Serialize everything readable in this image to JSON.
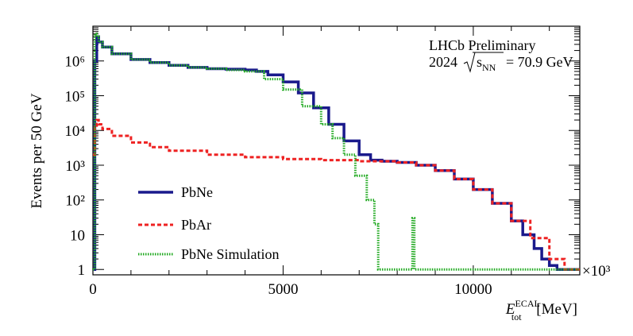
{
  "chart_data": {
    "type": "line",
    "xlabel": {
      "symbol": "E",
      "sup": "ECAL",
      "sub": "tot",
      "unit": "[MeV]"
    },
    "ylabel": "Events per 50 GeV",
    "x_multiplier": "×10³",
    "xlim": [
      0,
      12800
    ],
    "ylim": [
      0.7,
      10000000
    ],
    "yscale": "log",
    "x_ticks": [
      {
        "value": 0,
        "label": "0"
      },
      {
        "value": 5000,
        "label": "5000"
      },
      {
        "value": 10000,
        "label": "10000"
      }
    ],
    "y_ticks": [
      {
        "value": 1,
        "label": "1"
      },
      {
        "value": 10,
        "label": "10"
      },
      {
        "value": 100,
        "label": "10²"
      },
      {
        "value": 1000,
        "label": "10³"
      },
      {
        "value": 10000,
        "label": "10⁴"
      },
      {
        "value": 100000,
        "label": "10⁵"
      },
      {
        "value": 1000000,
        "label": "10⁶"
      }
    ],
    "annotations": {
      "line1": "LHCb Preliminary",
      "year": "2024",
      "sqrt_label": "s",
      "sqrt_sub": "NN",
      "energy": "= 70.9 GeV"
    },
    "legend_position": "bottom-left",
    "series": [
      {
        "name": "PbNe",
        "color": "#1a1a8c",
        "style": "solid",
        "x": [
          0,
          50,
          100,
          150,
          250,
          500,
          1000,
          1500,
          2000,
          2500,
          3000,
          3500,
          4000,
          4300,
          4600,
          5000,
          5400,
          5800,
          6200,
          6600,
          7000,
          7300,
          7600,
          8000,
          8500,
          9000,
          9500,
          10000,
          10500,
          11000,
          11300,
          11600,
          11800,
          12000,
          12200,
          12400,
          12600
        ],
        "values": [
          1,
          1000000,
          5000000,
          3500000,
          2500000,
          1600000,
          1100000,
          900000,
          750000,
          650000,
          600000,
          580000,
          550000,
          500000,
          400000,
          250000,
          120000,
          45000,
          15000,
          5000,
          2000,
          1400,
          1300,
          1200,
          1000,
          700,
          400,
          200,
          80,
          25,
          10,
          4,
          2,
          1.3,
          1,
          1,
          1
        ]
      },
      {
        "name": "PbAr",
        "color": "#ee2222",
        "style": "dashed",
        "x": [
          0,
          50,
          100,
          150,
          250,
          500,
          1000,
          1500,
          2000,
          3000,
          4000,
          5000,
          6000,
          7000,
          8000,
          8500,
          9000,
          9500,
          10000,
          10500,
          11000,
          11500,
          12000,
          12400,
          12600
        ],
        "values": [
          2000,
          12000,
          20000,
          15000,
          11000,
          7000,
          4500,
          3300,
          2600,
          2000,
          1700,
          1500,
          1400,
          1300,
          1200,
          1000,
          700,
          400,
          200,
          80,
          25,
          8,
          2,
          1,
          1
        ]
      },
      {
        "name": "PbNe Simulation",
        "color": "#22aa22",
        "style": "dotted",
        "x": [
          0,
          50,
          100,
          150,
          250,
          500,
          1000,
          1500,
          2000,
          2500,
          3000,
          3500,
          4000,
          4500,
          5000,
          5500,
          6000,
          6300,
          6600,
          6900,
          7200,
          7400,
          7500,
          7600,
          8000,
          8350,
          8400,
          8450,
          8500,
          9000,
          10000,
          11000,
          12000,
          12600
        ],
        "values": [
          1,
          6000000,
          5000000,
          3500000,
          2500000,
          1600000,
          1100000,
          900000,
          750000,
          650000,
          600000,
          550000,
          500000,
          300000,
          150000,
          50000,
          15000,
          6000,
          2000,
          500,
          100,
          20,
          1,
          1,
          1,
          1,
          30,
          1,
          1,
          1,
          1,
          1,
          1,
          1
        ]
      }
    ]
  }
}
